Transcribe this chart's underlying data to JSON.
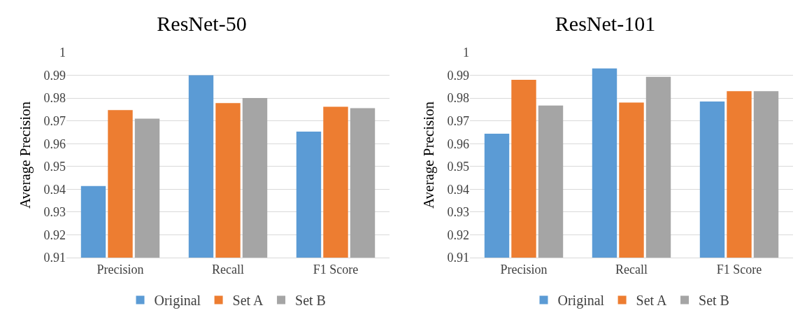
{
  "chart_data": [
    {
      "type": "bar",
      "title": "ResNet-50",
      "ylabel": "Average Precision",
      "categories": [
        "Precision",
        "Recall",
        "F1 Score"
      ],
      "series": [
        {
          "name": "Original",
          "color": "#5b9bd5",
          "values": [
            0.9414,
            0.99,
            0.9653
          ]
        },
        {
          "name": "Set A",
          "color": "#ed7d31",
          "values": [
            0.9747,
            0.9778,
            0.9762
          ]
        },
        {
          "name": "Set B",
          "color": "#a5a5a5",
          "values": [
            0.971,
            0.98,
            0.9756
          ]
        }
      ],
      "ylim": [
        0.91,
        1
      ],
      "yticks": [
        0.91,
        0.92,
        0.93,
        0.94,
        0.95,
        0.96,
        0.97,
        0.98,
        0.99,
        1
      ],
      "grid": "y",
      "legend": "bottom"
    },
    {
      "type": "bar",
      "title": "ResNet-101",
      "ylabel": "Average Precision",
      "categories": [
        "Precision",
        "Recall",
        "F1 Score"
      ],
      "series": [
        {
          "name": "Original",
          "color": "#5b9bd5",
          "values": [
            0.9644,
            0.993,
            0.9785
          ]
        },
        {
          "name": "Set A",
          "color": "#ed7d31",
          "values": [
            0.988,
            0.978,
            0.983
          ]
        },
        {
          "name": "Set B",
          "color": "#a5a5a5",
          "values": [
            0.9767,
            0.9893,
            0.983
          ]
        }
      ],
      "ylim": [
        0.91,
        1
      ],
      "yticks": [
        0.91,
        0.92,
        0.93,
        0.94,
        0.95,
        0.96,
        0.97,
        0.98,
        0.99,
        1
      ],
      "grid": "y",
      "legend": "bottom"
    }
  ]
}
